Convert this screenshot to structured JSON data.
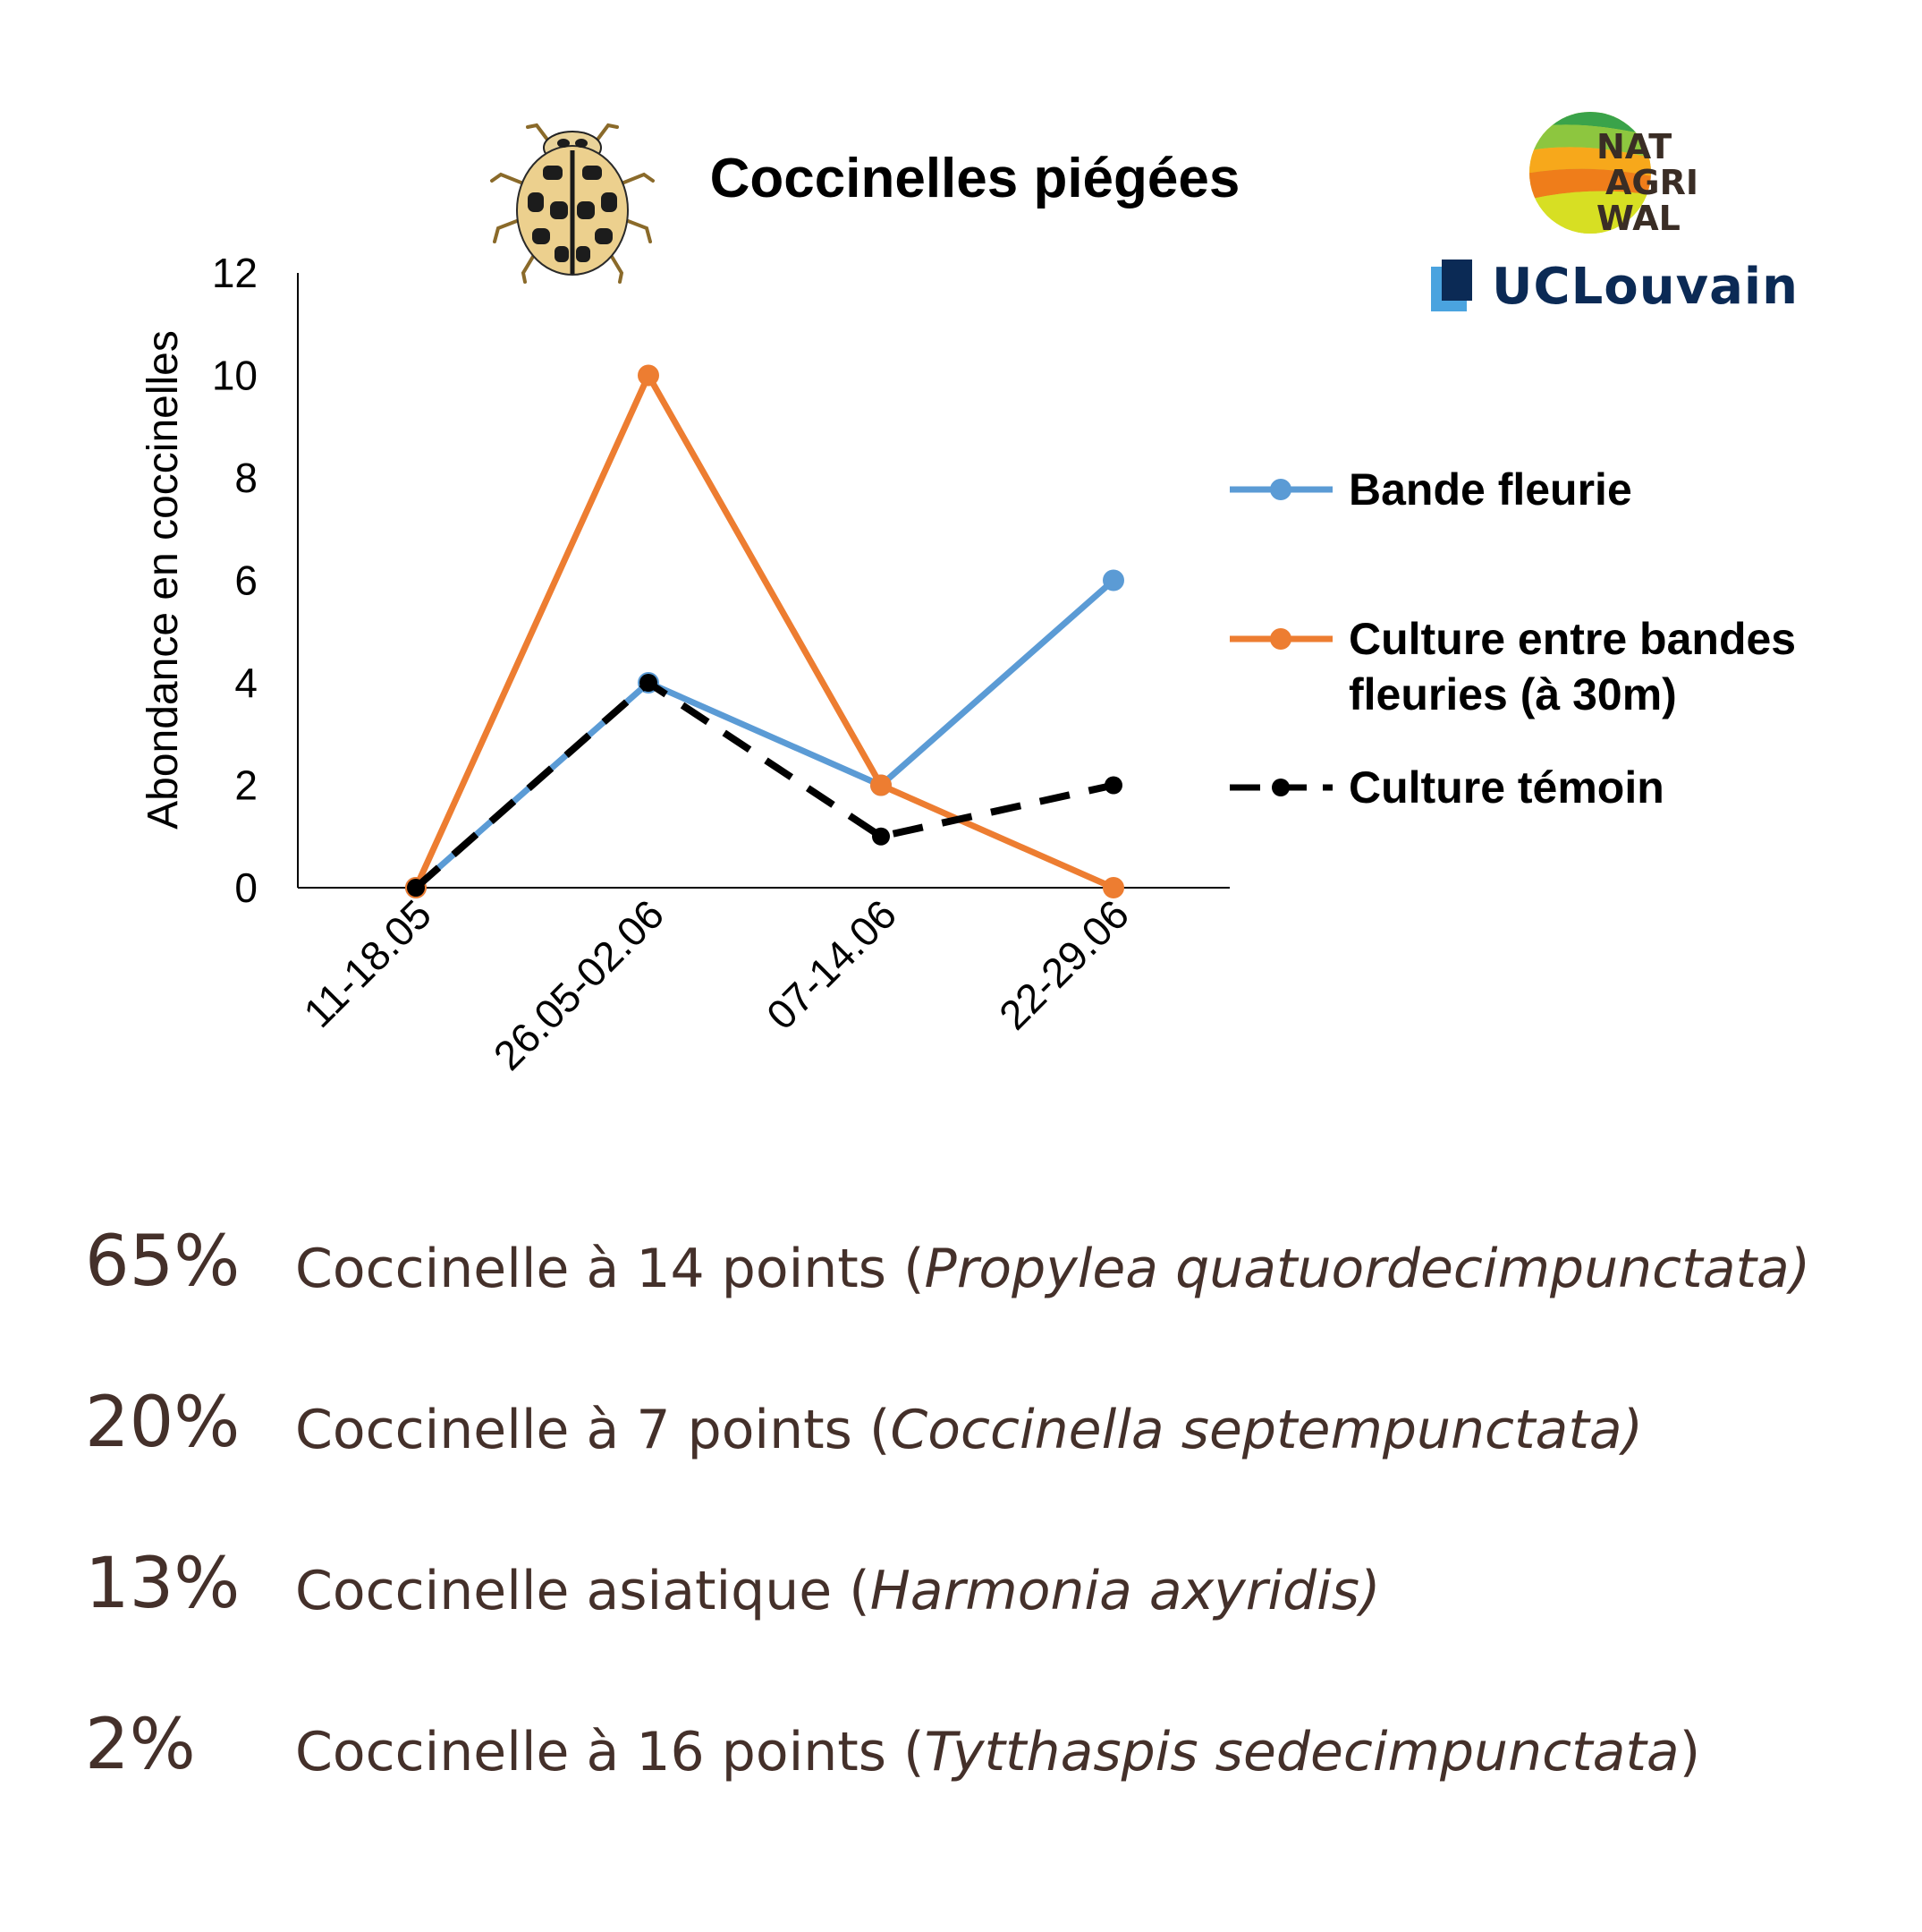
{
  "chart_data": {
    "type": "line",
    "title": "Coccinelles piégées",
    "xlabel": "",
    "ylabel": "Abondance en coccinelles",
    "categories": [
      "11-18.05",
      "26.05-02.06",
      "07-14.06",
      "22-29.06"
    ],
    "ylim": [
      0,
      12
    ],
    "yticks": [
      0,
      2,
      4,
      6,
      8,
      10,
      12
    ],
    "grid": false,
    "legend_position": "right",
    "series": [
      {
        "name": "Bande fleurie",
        "values": [
          0,
          4,
          2,
          6
        ],
        "color": "#5b9bd5",
        "dash": "solid"
      },
      {
        "name": "Culture entre bandes fleuries (à 30m)",
        "name_lines": [
          "Culture entre bandes",
          "fleuries (à 30m)"
        ],
        "values": [
          0,
          10,
          2,
          0
        ],
        "color": "#ed7d31",
        "dash": "solid"
      },
      {
        "name": "Culture témoin",
        "values": [
          0,
          4,
          1,
          2
        ],
        "color": "#000000",
        "dash": "dashed"
      }
    ]
  },
  "logos": {
    "natagriwal": [
      "NAT",
      "AGRI",
      "WAL"
    ],
    "uclouvain": "UCLouvain"
  },
  "species": [
    {
      "percent": "65%",
      "common": "Coccinelle à 14 points (",
      "latin": "Propylea quatuordecimpunctata)",
      "tail": ""
    },
    {
      "percent": "20%",
      "common": "Coccinelle à 7 points (",
      "latin": "Coccinella septempunctata)",
      "tail": ""
    },
    {
      "percent": "13%",
      "common": "Coccinelle asiatique (",
      "latin": "Harmonia axyridis)",
      "tail": ""
    },
    {
      "percent": "2%",
      "common": "Coccinelle à 16 points (",
      "latin": "Tytthaspis sedecimpunctata",
      "tail": ")"
    }
  ]
}
